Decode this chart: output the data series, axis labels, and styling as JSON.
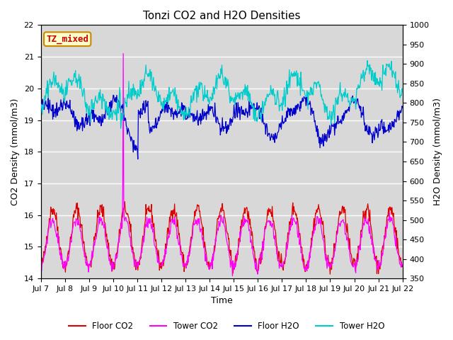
{
  "title": "Tonzi CO2 and H2O Densities",
  "xlabel": "Time",
  "ylabel_left": "CO2 Density (mmol/m3)",
  "ylabel_right": "H2O Density (mmol/m3)",
  "ylim_left": [
    14.0,
    22.0
  ],
  "ylim_right": [
    350,
    1000
  ],
  "annotation_text": "TZ_mixed",
  "annotation_color": "#cc0000",
  "annotation_bg": "#ffffcc",
  "annotation_border": "#cc8800",
  "background_color": "#d8d8d8",
  "colors": {
    "floor_co2": "#dd0000",
    "tower_co2": "#ff00ff",
    "floor_h2o": "#0000cc",
    "tower_h2o": "#00cccc"
  },
  "legend_labels": [
    "Floor CO2",
    "Tower CO2",
    "Floor H2O",
    "Tower H2O"
  ],
  "xtick_labels": [
    "Jul 7",
    "Jul 8",
    "Jul 9",
    "Jul 10",
    "Jul 11",
    "Jul 12",
    "Jul 13",
    "Jul 14",
    "Jul 15",
    "Jul 16",
    "Jul 17",
    "Jul 18",
    "Jul 19",
    "Jul 20",
    "Jul 21",
    "Jul 22"
  ],
  "n_days": 15,
  "seed": 42
}
